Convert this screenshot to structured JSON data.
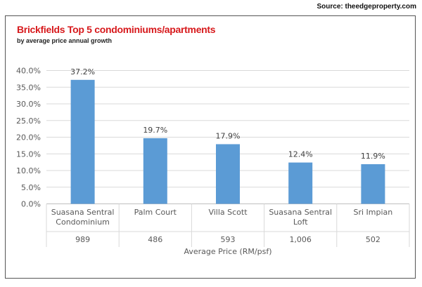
{
  "source": "Source: theedgeproperty.com",
  "chart_data": {
    "type": "bar",
    "title": "Brickfields Top 5 condominiums/apartments",
    "subtitle": "by average price annual growth",
    "xlabel": "Average Price (RM/psf)",
    "ylabel": "",
    "ylim": [
      0,
      40
    ],
    "yticks": [
      "0.0%",
      "5.0%",
      "10.0%",
      "15.0%",
      "20.0%",
      "25.0%",
      "30.0%",
      "35.0%",
      "40.0%"
    ],
    "categories": [
      [
        "Suasana Sentral",
        "Condominium"
      ],
      [
        "Palm Court"
      ],
      [
        "Villa Scott"
      ],
      [
        "Suasana Sentral",
        "Loft"
      ],
      [
        "Sri Impian"
      ]
    ],
    "prices": [
      "989",
      "486",
      "593",
      "1,006",
      "502"
    ],
    "values": [
      37.2,
      19.7,
      17.9,
      12.4,
      11.9
    ],
    "data_labels": [
      "37.2%",
      "19.7%",
      "17.9%",
      "12.4%",
      "11.9%"
    ],
    "bar_color": "#5b9bd5",
    "grid": true,
    "legend": "none"
  }
}
